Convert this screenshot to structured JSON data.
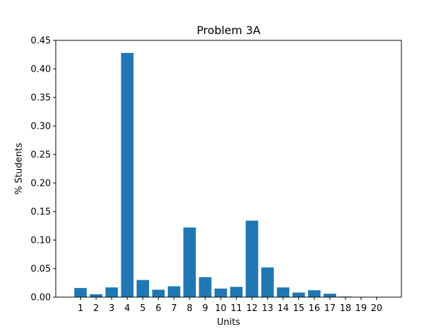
{
  "chart_data": {
    "type": "bar",
    "title": "Problem 3A",
    "xlabel": "Units",
    "ylabel": "% Students",
    "categories": [
      "1",
      "2",
      "3",
      "4",
      "5",
      "6",
      "7",
      "8",
      "9",
      "10",
      "11",
      "12",
      "13",
      "14",
      "15",
      "16",
      "17",
      "18",
      "19",
      "20"
    ],
    "values": [
      0.016,
      0.005,
      0.017,
      0.428,
      0.03,
      0.013,
      0.019,
      0.122,
      0.035,
      0.015,
      0.018,
      0.134,
      0.052,
      0.017,
      0.008,
      0.012,
      0.006,
      0.001,
      0.0,
      0.0
    ],
    "ylim": [
      0,
      0.45
    ],
    "yticks": [
      "0.00",
      "0.05",
      "0.10",
      "0.15",
      "0.20",
      "0.25",
      "0.30",
      "0.35",
      "0.40",
      "0.45"
    ],
    "grid": false,
    "colors": {
      "bar": "#1f77b4",
      "axis": "#000000"
    }
  }
}
